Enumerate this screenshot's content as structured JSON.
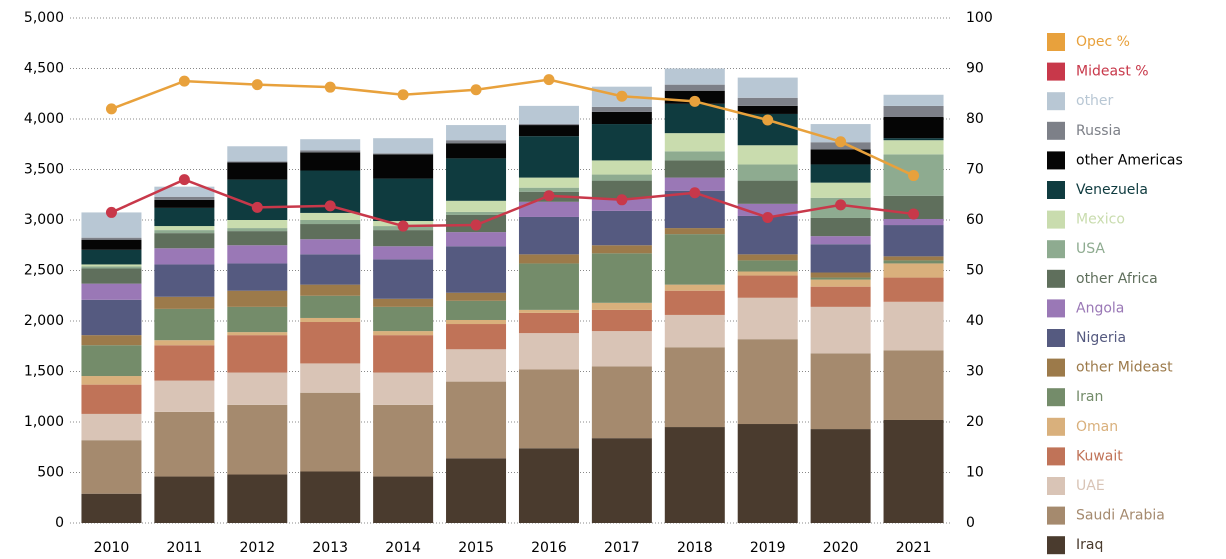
{
  "chart_data": {
    "type": "bar",
    "stacked": true,
    "categories": [
      "2010",
      "2011",
      "2012",
      "2013",
      "2014",
      "2015",
      "2016",
      "2017",
      "2018",
      "2019",
      "2020",
      "2021"
    ],
    "ylim": [
      0,
      5000
    ],
    "yticks": [
      0,
      500,
      {
        "value": 1000,
        "label": "1,000"
      },
      {
        "value": 1500,
        "label": "1,500"
      },
      {
        "value": 2000,
        "label": "2,000"
      },
      {
        "value": 2500,
        "label": "2,500"
      },
      {
        "value": 3000,
        "label": "3,000"
      },
      {
        "value": 3500,
        "label": "3,500"
      },
      {
        "value": 4000,
        "label": "4,000"
      },
      {
        "value": 4500,
        "label": "4,500"
      },
      {
        "value": 5000,
        "label": "5,000"
      }
    ],
    "y2lim": [
      0,
      100
    ],
    "y2ticks": [
      0,
      10,
      20,
      30,
      40,
      50,
      60,
      70,
      80,
      90,
      100
    ],
    "grid": true,
    "legend": "right",
    "series": [
      {
        "name": "Iraq",
        "color": "#4a3b2e",
        "values": [
          290,
          460,
          480,
          510,
          460,
          640,
          740,
          840,
          950,
          980,
          930,
          1020
        ]
      },
      {
        "name": "Saudi Arabia",
        "color": "#a58a6e",
        "values": [
          530,
          640,
          690,
          780,
          710,
          760,
          780,
          710,
          790,
          840,
          750,
          690
        ]
      },
      {
        "name": "UAE",
        "color": "#d9c4b6",
        "values": [
          260,
          310,
          320,
          290,
          320,
          320,
          360,
          350,
          320,
          410,
          460,
          480
        ]
      },
      {
        "name": "Kuwait",
        "color": "#c07358",
        "values": [
          290,
          350,
          370,
          410,
          370,
          250,
          200,
          210,
          240,
          220,
          200,
          240
        ]
      },
      {
        "name": "Oman",
        "color": "#d9b07c",
        "values": [
          85,
          50,
          30,
          40,
          40,
          40,
          30,
          70,
          60,
          40,
          70,
          140
        ]
      },
      {
        "name": "Iran",
        "color": "#748c6a",
        "values": [
          305,
          310,
          250,
          220,
          240,
          190,
          460,
          490,
          500,
          110,
          20,
          30
        ]
      },
      {
        "name": "other Mideast",
        "color": "#9c7a4a",
        "values": [
          100,
          120,
          160,
          110,
          80,
          80,
          90,
          80,
          60,
          60,
          50,
          40
        ]
      },
      {
        "name": "Nigeria",
        "color": "#555a80",
        "values": [
          350,
          320,
          270,
          300,
          390,
          460,
          370,
          340,
          370,
          380,
          280,
          310
        ]
      },
      {
        "name": "Angola",
        "color": "#9a78b6",
        "values": [
          160,
          160,
          180,
          150,
          130,
          140,
          150,
          120,
          130,
          120,
          80,
          60
        ]
      },
      {
        "name": "other Africa",
        "color": "#5f6f5c",
        "values": [
          150,
          150,
          140,
          150,
          160,
          170,
          100,
          180,
          170,
          230,
          180,
          230
        ]
      },
      {
        "name": "USA",
        "color": "#8eab90",
        "values": [
          20,
          30,
          30,
          40,
          40,
          30,
          40,
          60,
          90,
          160,
          200,
          410
        ]
      },
      {
        "name": "Mexico",
        "color": "#c9dcae",
        "values": [
          20,
          40,
          80,
          70,
          50,
          110,
          100,
          140,
          180,
          190,
          150,
          140
        ]
      },
      {
        "name": "Venezuela",
        "color": "#0f3b3f",
        "values": [
          145,
          180,
          400,
          420,
          420,
          420,
          410,
          360,
          290,
          310,
          180,
          20
        ]
      },
      {
        "name": "other Americas",
        "color": "#050505",
        "values": [
          100,
          80,
          170,
          180,
          240,
          150,
          110,
          120,
          130,
          80,
          150,
          210
        ]
      },
      {
        "name": "Russia",
        "color": "#7d8088",
        "values": [
          20,
          30,
          10,
          20,
          10,
          30,
          10,
          50,
          60,
          80,
          70,
          110
        ]
      },
      {
        "name": "other",
        "color": "#b8c7d4",
        "values": [
          250,
          100,
          150,
          110,
          150,
          150,
          180,
          200,
          160,
          200,
          180,
          110
        ]
      },
      {
        "name": "Mideast %",
        "color": "#c8384a",
        "type": "line",
        "axis": "y2",
        "values": [
          61.5,
          68,
          62.5,
          62.8,
          58.8,
          59,
          64.8,
          64,
          65.4,
          60.5,
          63,
          61.2
        ]
      },
      {
        "name": "Opec %",
        "color": "#e8a13c",
        "type": "line",
        "axis": "y2",
        "values": [
          82,
          87.5,
          86.8,
          86.3,
          84.8,
          85.8,
          87.8,
          84.5,
          83.5,
          79.8,
          75.5,
          68.8
        ]
      }
    ]
  }
}
